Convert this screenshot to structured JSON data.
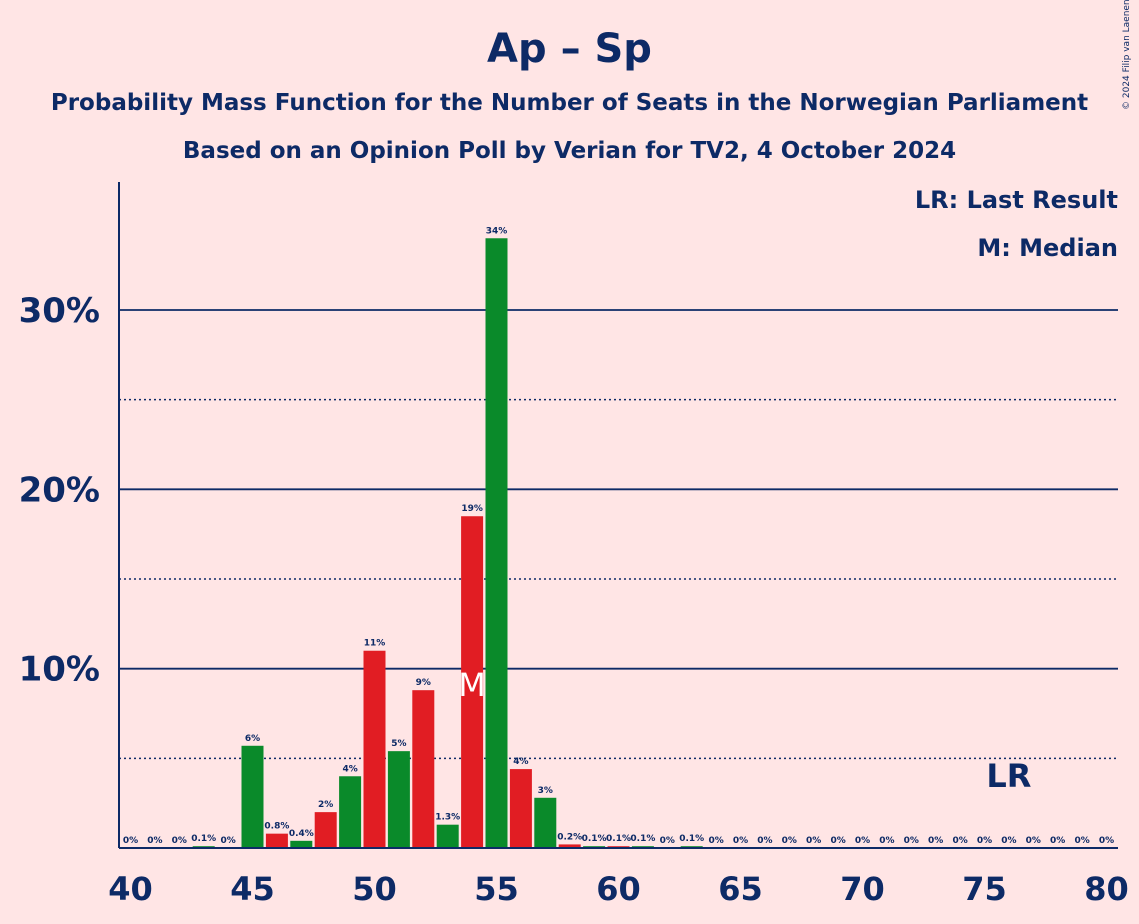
{
  "header": {
    "title": "Ap – Sp",
    "subtitle1": "Probability Mass Function for the Number of Seats in the Norwegian Parliament",
    "subtitle2": "Based on an Opinion Poll by Verian for TV2, 4 October 2024"
  },
  "legend": {
    "last_result": "LR: Last Result",
    "median": "M: Median"
  },
  "copyright": "© 2024 Filip van Laenen",
  "colors": {
    "background": "#FFE5E5",
    "text": "#0D2A66",
    "red": "#E11D23",
    "green": "#0A8A2A"
  },
  "chart_data": {
    "type": "bar",
    "x": [
      40,
      41,
      42,
      43,
      44,
      45,
      46,
      47,
      48,
      49,
      50,
      51,
      52,
      53,
      54,
      55,
      56,
      57,
      58,
      59,
      60,
      61,
      62,
      63,
      64,
      65,
      66,
      67,
      68,
      69,
      70,
      71,
      72,
      73,
      74,
      75,
      76,
      77,
      78,
      79,
      80
    ],
    "values": [
      0,
      0,
      0,
      0.1,
      0,
      5.7,
      0.8,
      0.4,
      2.0,
      4.0,
      11.0,
      5.4,
      8.8,
      1.3,
      18.5,
      34.0,
      4.4,
      2.8,
      0.2,
      0.1,
      0.1,
      0.1,
      0,
      0.1,
      0,
      0,
      0,
      0,
      0,
      0,
      0,
      0,
      0,
      0,
      0,
      0,
      0,
      0,
      0,
      0,
      0
    ],
    "labels": [
      "0%",
      "0%",
      "0%",
      "0.1%",
      "0%",
      "6%",
      "0.8%",
      "0.4%",
      "2%",
      "4%",
      "11%",
      "5%",
      "9%",
      "1.3%",
      "19%",
      "34%",
      "4%",
      "3%",
      "0.2%",
      "0.1%",
      "0.1%",
      "0.1%",
      "0%",
      "0.1%",
      "0%",
      "0%",
      "0%",
      "0%",
      "0%",
      "0%",
      "0%",
      "0%",
      "0%",
      "0%",
      "0%",
      "0%",
      "0%",
      "0%",
      "0%",
      "0%",
      "0%"
    ],
    "colors": [
      "red",
      "green",
      "red",
      "green",
      "red",
      "green",
      "red",
      "green",
      "red",
      "green",
      "red",
      "green",
      "red",
      "green",
      "red",
      "green",
      "red",
      "green",
      "red",
      "green",
      "red",
      "green",
      "red",
      "green",
      "red",
      "green",
      "red",
      "green",
      "red",
      "green",
      "red",
      "green",
      "red",
      "green",
      "red",
      "green",
      "red",
      "green",
      "red",
      "green",
      "red"
    ],
    "xticks": [
      40,
      45,
      50,
      55,
      60,
      65,
      70,
      75,
      80
    ],
    "xtick_labels": [
      "40",
      "45",
      "50",
      "55",
      "60",
      "65",
      "70",
      "75",
      "80"
    ],
    "yticks": [
      10,
      20,
      30
    ],
    "ytick_labels": [
      "10%",
      "20%",
      "30%"
    ],
    "minor_gridlines": [
      5,
      15,
      25
    ],
    "ylim": [
      0,
      37
    ],
    "median": {
      "seat": 54,
      "label": "M"
    },
    "last_result": {
      "seat": 76,
      "label": "LR"
    },
    "legend_position": "top-right"
  }
}
